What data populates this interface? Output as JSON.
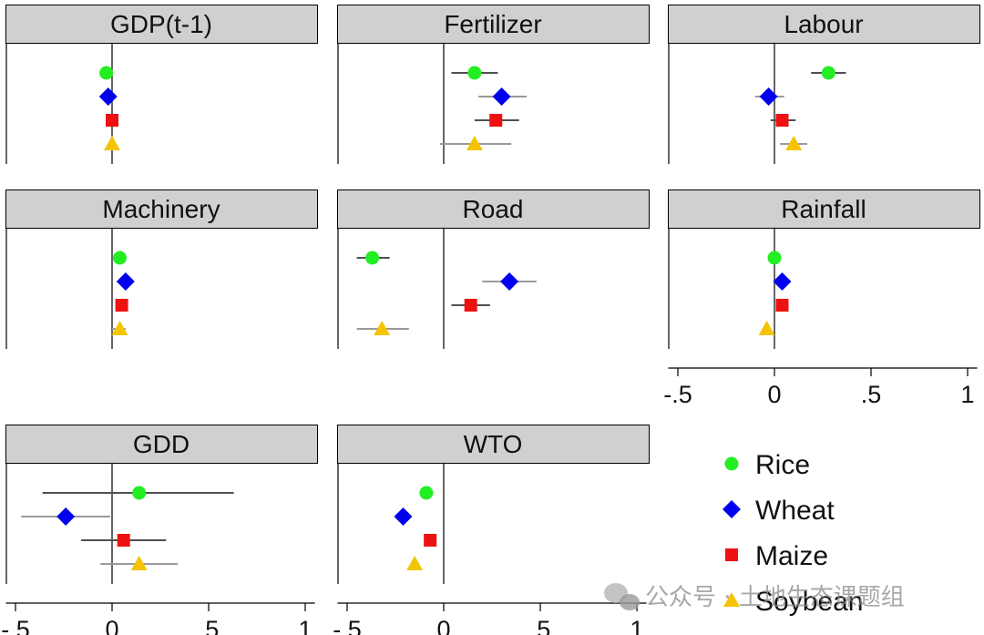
{
  "chart_data": {
    "type": "scatter",
    "subtype": "coefficient-plot-small-multiples",
    "xlim": [
      -0.55,
      1.05
    ],
    "xticks": [
      -0.5,
      0,
      0.5,
      1
    ],
    "xtick_labels": [
      "-.5",
      "0",
      ".5",
      "1"
    ],
    "reference_line_x": 0,
    "grid": false,
    "legend_position": "bottom-right",
    "series": [
      {
        "name": "Rice",
        "marker": "circle",
        "color": "#22ee22"
      },
      {
        "name": "Wheat",
        "marker": "diamond",
        "color": "#0000ee"
      },
      {
        "name": "Maize",
        "marker": "square",
        "color": "#ee1111"
      },
      {
        "name": "Soybean",
        "marker": "triangle",
        "color": "#f5c400"
      }
    ],
    "panels": [
      {
        "title": "GDP(t-1)",
        "estimates": [
          {
            "series": "Rice",
            "value": -0.03,
            "ci": [
              -0.04,
              -0.02
            ]
          },
          {
            "series": "Wheat",
            "value": -0.02,
            "ci": [
              -0.03,
              -0.01
            ]
          },
          {
            "series": "Maize",
            "value": 0.0,
            "ci": [
              -0.01,
              0.01
            ]
          },
          {
            "series": "Soybean",
            "value": 0.0,
            "ci": [
              -0.01,
              0.01
            ]
          }
        ]
      },
      {
        "title": "Fertilizer",
        "estimates": [
          {
            "series": "Rice",
            "value": 0.16,
            "ci": [
              0.04,
              0.28
            ]
          },
          {
            "series": "Wheat",
            "value": 0.3,
            "ci": [
              0.18,
              0.43
            ]
          },
          {
            "series": "Maize",
            "value": 0.27,
            "ci": [
              0.16,
              0.39
            ]
          },
          {
            "series": "Soybean",
            "value": 0.16,
            "ci": [
              -0.02,
              0.35
            ]
          }
        ]
      },
      {
        "title": "Labour",
        "estimates": [
          {
            "series": "Rice",
            "value": 0.28,
            "ci": [
              0.19,
              0.37
            ]
          },
          {
            "series": "Wheat",
            "value": -0.03,
            "ci": [
              -0.1,
              0.05
            ]
          },
          {
            "series": "Maize",
            "value": 0.04,
            "ci": [
              -0.02,
              0.11
            ]
          },
          {
            "series": "Soybean",
            "value": 0.1,
            "ci": [
              0.03,
              0.17
            ]
          }
        ]
      },
      {
        "title": "Machinery",
        "estimates": [
          {
            "series": "Rice",
            "value": 0.04,
            "ci": [
              0.03,
              0.05
            ]
          },
          {
            "series": "Wheat",
            "value": 0.07,
            "ci": [
              0.06,
              0.08
            ]
          },
          {
            "series": "Maize",
            "value": 0.05,
            "ci": [
              0.04,
              0.06
            ]
          },
          {
            "series": "Soybean",
            "value": 0.04,
            "ci": [
              0.0,
              0.07
            ]
          }
        ]
      },
      {
        "title": "Road",
        "estimates": [
          {
            "series": "Rice",
            "value": -0.37,
            "ci": [
              -0.45,
              -0.28
            ]
          },
          {
            "series": "Wheat",
            "value": 0.34,
            "ci": [
              0.2,
              0.48
            ]
          },
          {
            "series": "Maize",
            "value": 0.14,
            "ci": [
              0.04,
              0.24
            ]
          },
          {
            "series": "Soybean",
            "value": -0.32,
            "ci": [
              -0.45,
              -0.18
            ]
          }
        ]
      },
      {
        "title": "Rainfall",
        "estimates": [
          {
            "series": "Rice",
            "value": 0.0,
            "ci": [
              -0.01,
              0.01
            ]
          },
          {
            "series": "Wheat",
            "value": 0.04,
            "ci": [
              0.03,
              0.05
            ]
          },
          {
            "series": "Maize",
            "value": 0.04,
            "ci": [
              0.03,
              0.05
            ]
          },
          {
            "series": "Soybean",
            "value": -0.04,
            "ci": [
              -0.05,
              -0.03
            ]
          }
        ]
      },
      {
        "title": "GDD",
        "estimates": [
          {
            "series": "Rice",
            "value": 0.14,
            "ci": [
              -0.36,
              0.63
            ]
          },
          {
            "series": "Wheat",
            "value": -0.24,
            "ci": [
              -0.47,
              -0.01
            ]
          },
          {
            "series": "Maize",
            "value": 0.06,
            "ci": [
              -0.16,
              0.28
            ]
          },
          {
            "series": "Soybean",
            "value": 0.14,
            "ci": [
              -0.06,
              0.34
            ]
          }
        ]
      },
      {
        "title": "WTO",
        "estimates": [
          {
            "series": "Rice",
            "value": -0.09,
            "ci": [
              -0.1,
              -0.08
            ]
          },
          {
            "series": "Wheat",
            "value": -0.21,
            "ci": [
              -0.22,
              -0.2
            ]
          },
          {
            "series": "Maize",
            "value": -0.07,
            "ci": [
              -0.08,
              -0.06
            ]
          },
          {
            "series": "Soybean",
            "value": -0.15,
            "ci": [
              -0.17,
              -0.13
            ]
          }
        ]
      }
    ],
    "axes_shown_under": [
      "Rainfall",
      "GDD",
      "WTO"
    ]
  },
  "watermark": {
    "text": "公众号 · 土地生态课题组",
    "icon": "wechat-icon"
  }
}
